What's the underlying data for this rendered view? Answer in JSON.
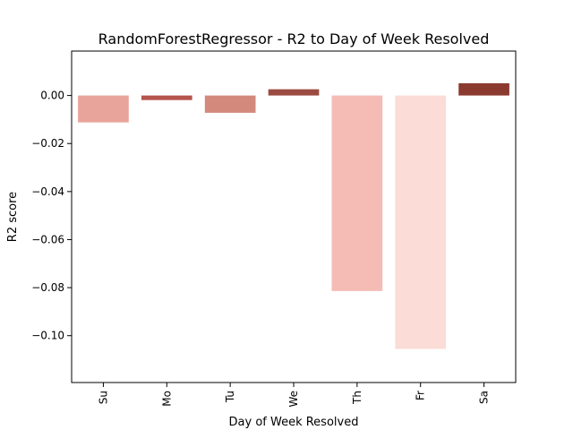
{
  "chart_data": {
    "type": "bar",
    "title": "RandomForestRegressor - R2 to Day of Week Resolved",
    "xlabel": "Day of Week Resolved",
    "ylabel": "R2 score",
    "categories": [
      "Su",
      "Mo",
      "Tu",
      "We",
      "Th",
      "Fr",
      "Sa"
    ],
    "values": [
      -0.0112,
      -0.0019,
      -0.0072,
      0.0026,
      -0.0814,
      -0.1055,
      0.0051
    ],
    "colors": [
      "#e8a49a",
      "#b5544c",
      "#d4897d",
      "#9c4b42",
      "#f4bcb5",
      "#fbdcd6",
      "#8b3a30"
    ],
    "ylim": [
      -0.1195,
      0.0185
    ],
    "yticks": [
      0.0,
      -0.02,
      -0.04,
      -0.06,
      -0.08,
      -0.1
    ],
    "ytick_labels": [
      "0.00",
      "−0.02",
      "−0.04",
      "−0.06",
      "−0.08",
      "−0.10"
    ],
    "grid": false,
    "legend": "none"
  }
}
